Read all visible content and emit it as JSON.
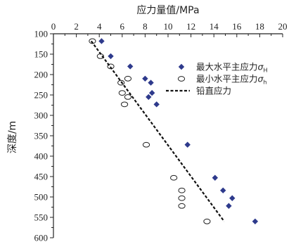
{
  "chart_data": {
    "type": "scatter",
    "title": "",
    "xlabel": "应力量值/MPa",
    "ylabel": "深度/m",
    "xlim": [
      0,
      20
    ],
    "ylim": [
      100,
      600
    ],
    "x_ticks": [
      0,
      2,
      4,
      6,
      8,
      10,
      12,
      14,
      16,
      18,
      20
    ],
    "y_ticks": [
      100,
      150,
      200,
      250,
      300,
      350,
      400,
      450,
      500,
      550,
      600
    ],
    "x_axis_position": "top",
    "y_inverted": true,
    "grid": false,
    "legend_position": "top-right",
    "series": [
      {
        "name": "最大水平主应力σH",
        "marker": "diamond",
        "color": "#2e3a8c",
        "points": [
          [
            4.2,
            118
          ],
          [
            5.0,
            155
          ],
          [
            6.7,
            180
          ],
          [
            8.0,
            210
          ],
          [
            8.5,
            220
          ],
          [
            8.6,
            245
          ],
          [
            8.3,
            255
          ],
          [
            9.0,
            273
          ],
          [
            11.7,
            372
          ],
          [
            14.1,
            453
          ],
          [
            14.8,
            484
          ],
          [
            15.6,
            503
          ],
          [
            15.3,
            522
          ],
          [
            17.6,
            560
          ]
        ]
      },
      {
        "name": "最小水平主应力σh",
        "marker": "open-circle",
        "color": "#222222",
        "points": [
          [
            3.4,
            118
          ],
          [
            4.1,
            155
          ],
          [
            5.0,
            180
          ],
          [
            6.5,
            210
          ],
          [
            5.9,
            220
          ],
          [
            6.0,
            245
          ],
          [
            6.5,
            255
          ],
          [
            6.2,
            273
          ],
          [
            8.1,
            372
          ],
          [
            10.5,
            453
          ],
          [
            11.2,
            484
          ],
          [
            11.2,
            503
          ],
          [
            11.2,
            522
          ],
          [
            13.4,
            560
          ]
        ]
      },
      {
        "name": "铅直应力",
        "marker": "dashed-line",
        "color": "#111111",
        "points": [
          [
            3.3,
            118
          ],
          [
            14.9,
            560
          ]
        ]
      }
    ]
  }
}
